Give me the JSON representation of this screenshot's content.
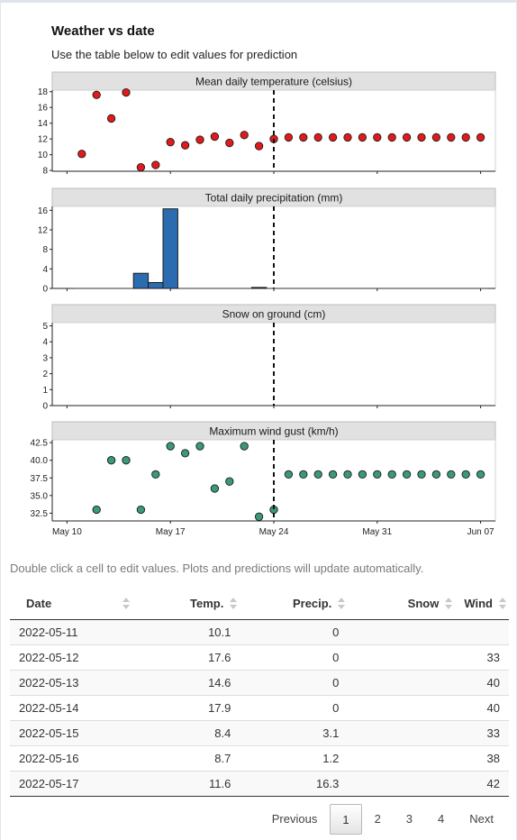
{
  "card": {
    "title": "Weather vs date",
    "subtitle": "Use the table below to edit values for prediction"
  },
  "chart_data": {
    "type": "faceted",
    "x_ticks": [
      "May 10",
      "May 17",
      "May 24",
      "May 31",
      "Jun 07"
    ],
    "x_tick_dates": [
      "2022-05-10",
      "2022-05-17",
      "2022-05-24",
      "2022-05-31",
      "2022-06-07"
    ],
    "x_range": [
      "2022-05-09",
      "2022-06-08"
    ],
    "split_date": "2022-05-24",
    "colors": {
      "temp": "#e31a1c",
      "precip": "#2b6cb0",
      "wind": "#3a9a78",
      "strip": "#e1e1e1"
    },
    "panels": [
      {
        "title": "Mean daily temperature (celsius)",
        "type": "scatter",
        "ylim": [
          7.9,
          18.2
        ],
        "y_ticks": [
          8,
          10,
          12,
          14,
          16,
          18
        ],
        "x": [
          "2022-05-11",
          "2022-05-12",
          "2022-05-13",
          "2022-05-14",
          "2022-05-15",
          "2022-05-16",
          "2022-05-17",
          "2022-05-18",
          "2022-05-19",
          "2022-05-20",
          "2022-05-21",
          "2022-05-22",
          "2022-05-23",
          "2022-05-24",
          "2022-05-25",
          "2022-05-26",
          "2022-05-27",
          "2022-05-28",
          "2022-05-29",
          "2022-05-30",
          "2022-05-31",
          "2022-06-01",
          "2022-06-02",
          "2022-06-03",
          "2022-06-04",
          "2022-06-05",
          "2022-06-06",
          "2022-06-07"
        ],
        "y": [
          10.1,
          17.6,
          14.6,
          17.9,
          8.4,
          8.7,
          11.6,
          11.2,
          11.9,
          12.3,
          11.5,
          12.5,
          11.1,
          12.0,
          12.2,
          12.2,
          12.2,
          12.2,
          12.2,
          12.2,
          12.2,
          12.2,
          12.2,
          12.2,
          12.2,
          12.2,
          12.2,
          12.2
        ]
      },
      {
        "title": "Total daily precipitation (mm)",
        "type": "bar",
        "ylim": [
          0,
          16.8
        ],
        "y_ticks": [
          0,
          4,
          8,
          12,
          16
        ],
        "x": [
          "2022-05-11",
          "2022-05-12",
          "2022-05-13",
          "2022-05-14",
          "2022-05-15",
          "2022-05-16",
          "2022-05-17",
          "2022-05-18",
          "2022-05-19",
          "2022-05-20",
          "2022-05-21",
          "2022-05-22",
          "2022-05-23",
          "2022-05-24",
          "2022-05-25",
          "2022-05-26",
          "2022-05-27",
          "2022-05-28",
          "2022-05-29",
          "2022-05-30",
          "2022-05-31",
          "2022-06-01",
          "2022-06-02",
          "2022-06-03",
          "2022-06-04",
          "2022-06-05",
          "2022-06-06",
          "2022-06-07"
        ],
        "y": [
          0,
          0,
          0,
          0,
          3.1,
          1.2,
          16.3,
          0,
          0,
          0,
          0,
          0,
          0.2,
          0,
          0,
          0,
          0,
          0,
          0,
          0,
          0,
          0,
          0,
          0,
          0,
          0,
          0,
          0
        ]
      },
      {
        "title": "Snow on ground (cm)",
        "type": "bar",
        "ylim": [
          0,
          5.2
        ],
        "y_ticks": [
          0,
          1,
          2,
          3,
          4,
          5
        ],
        "x": [],
        "y": []
      },
      {
        "title": "Maximum wind gust (km/h)",
        "type": "scatter",
        "ylim": [
          31.4,
          42.9
        ],
        "y_ticks": [
          "32.5",
          "35.0",
          "37.5",
          "40.0",
          "42.5"
        ],
        "x": [
          "2022-05-12",
          "2022-05-13",
          "2022-05-14",
          "2022-05-15",
          "2022-05-16",
          "2022-05-17",
          "2022-05-18",
          "2022-05-19",
          "2022-05-20",
          "2022-05-21",
          "2022-05-22",
          "2022-05-23",
          "2022-05-24",
          "2022-05-25",
          "2022-05-26",
          "2022-05-27",
          "2022-05-28",
          "2022-05-29",
          "2022-05-30",
          "2022-05-31",
          "2022-06-01",
          "2022-06-02",
          "2022-06-03",
          "2022-06-04",
          "2022-06-05",
          "2022-06-06",
          "2022-06-07"
        ],
        "y": [
          33,
          40,
          40,
          33,
          38,
          42,
          41,
          42,
          36,
          37,
          42,
          32,
          33,
          38,
          38,
          38,
          38,
          38,
          38,
          38,
          38,
          38,
          38,
          38,
          38,
          38,
          38
        ]
      }
    ]
  },
  "hint": "Double click a cell to edit values. Plots and predictions will update automatically.",
  "table": {
    "columns": [
      "Date",
      "Temp.",
      "Precip.",
      "Snow",
      "Wind"
    ],
    "rows": [
      [
        "2022-05-11",
        "10.1",
        "0",
        "",
        ""
      ],
      [
        "2022-05-12",
        "17.6",
        "0",
        "",
        "33"
      ],
      [
        "2022-05-13",
        "14.6",
        "0",
        "",
        "40"
      ],
      [
        "2022-05-14",
        "17.9",
        "0",
        "",
        "40"
      ],
      [
        "2022-05-15",
        "8.4",
        "3.1",
        "",
        "33"
      ],
      [
        "2022-05-16",
        "8.7",
        "1.2",
        "",
        "38"
      ],
      [
        "2022-05-17",
        "11.6",
        "16.3",
        "",
        "42"
      ]
    ]
  },
  "pagination": {
    "previous": "Previous",
    "pages": [
      "1",
      "2",
      "3",
      "4"
    ],
    "current": "1",
    "next": "Next"
  }
}
